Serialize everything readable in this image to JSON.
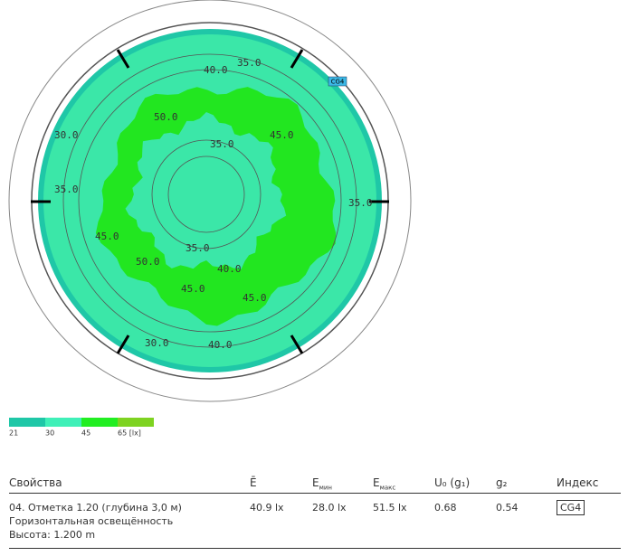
{
  "plot": {
    "tag": "CG4",
    "contour_labels": [
      "35.0",
      "40.0",
      "35.0",
      "45.0",
      "50.0",
      "30.0",
      "35.0",
      "45.0",
      "50.0",
      "45.0",
      "40.0",
      "35.0",
      "30.0",
      "40.0",
      "45.0",
      "35.0"
    ]
  },
  "legend": {
    "labels": [
      "21",
      "30",
      "45",
      "65 [lx]"
    ]
  },
  "table": {
    "headers": [
      {
        "base": "Свойства"
      },
      {
        "base": "Ē"
      },
      {
        "base": "E",
        "sub": "мин"
      },
      {
        "base": "E",
        "sub": "макс"
      },
      {
        "base": "U₀ (g₁)"
      },
      {
        "base": "g₂"
      },
      {
        "base": "Индекс"
      }
    ],
    "row": {
      "property": [
        "04. Отметка 1.20 (глубина 3,0 м)",
        "Горизонтальная освещённость",
        "Высота: 1.200 m"
      ],
      "cells": [
        "40.9 lx",
        "28.0 lx",
        "51.5 lx",
        "0.68",
        "0.54",
        "CG4"
      ]
    }
  }
}
